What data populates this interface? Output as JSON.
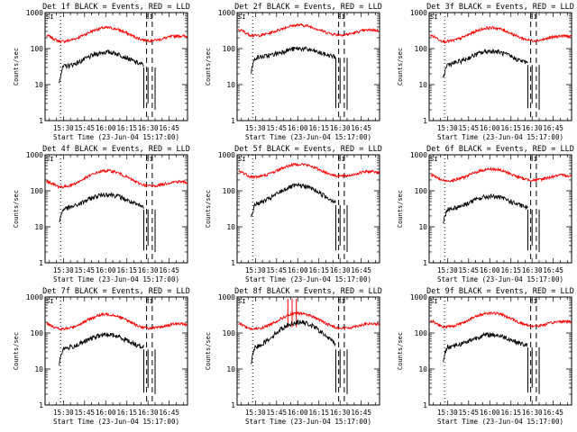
{
  "figure": {
    "tick_labels_y": [
      "1000",
      "100",
      "10",
      "1"
    ],
    "tick_labels_x": [
      "15:30",
      "15:45",
      "16:00",
      "16:15",
      "16:30",
      "16:45"
    ],
    "ylabel": "Counts/sec",
    "xlabel": "Start Time (23-Jun-04 15:17:00)",
    "marker_label": "SI",
    "colors": {
      "events": "#000000",
      "lld": "#ff0000"
    }
  },
  "chart_data": [
    {
      "type": "line",
      "title": "Det 1f BLACK = Events, RED = LLD",
      "yscale": "log",
      "ylim": [
        1,
        1000
      ],
      "x_start": "15:17",
      "x_end": "16:58",
      "xlabel": "Start Time (23-Jun-04 15:17:00)",
      "ylabel": "Counts/sec",
      "events_base": 30,
      "events_peak": 80,
      "lld_base": 150,
      "lld_peak": 380,
      "spike": false
    },
    {
      "type": "line",
      "title": "Det 2f BLACK = Events, RED = LLD",
      "yscale": "log",
      "ylim": [
        1,
        1000
      ],
      "x_start": "15:17",
      "x_end": "16:58",
      "xlabel": "Start Time (23-Jun-04 15:17:00)",
      "ylabel": "Counts/sec",
      "events_base": 55,
      "events_peak": 100,
      "lld_base": 220,
      "lld_peak": 450,
      "spike": false
    },
    {
      "type": "line",
      "title": "Det 3f BLACK = Events, RED = LLD",
      "yscale": "log",
      "ylim": [
        1,
        1000
      ],
      "x_start": "15:17",
      "x_end": "16:58",
      "xlabel": "Start Time (23-Jun-04 15:17:00)",
      "ylabel": "Counts/sec",
      "events_base": 35,
      "events_peak": 85,
      "lld_base": 150,
      "lld_peak": 380,
      "spike": false
    },
    {
      "type": "line",
      "title": "Det 4f BLACK = Events, RED = LLD",
      "yscale": "log",
      "ylim": [
        1,
        1000
      ],
      "x_start": "15:17",
      "x_end": "16:58",
      "xlabel": "Start Time (23-Jun-04 15:17:00)",
      "ylabel": "Counts/sec",
      "events_base": 30,
      "events_peak": 80,
      "lld_base": 120,
      "lld_peak": 360,
      "spike": false
    },
    {
      "type": "line",
      "title": "Det 5f BLACK = Events, RED = LLD",
      "yscale": "log",
      "ylim": [
        1,
        1000
      ],
      "x_start": "15:17",
      "x_end": "16:58",
      "xlabel": "Start Time (23-Jun-04 15:17:00)",
      "ylabel": "Counts/sec",
      "events_base": 40,
      "events_peak": 140,
      "lld_base": 230,
      "lld_peak": 550,
      "spike": false
    },
    {
      "type": "line",
      "title": "Det 6f BLACK = Events, RED = LLD",
      "yscale": "log",
      "ylim": [
        1,
        1000
      ],
      "x_start": "15:17",
      "x_end": "16:58",
      "xlabel": "Start Time (23-Jun-04 15:17:00)",
      "ylabel": "Counts/sec",
      "events_base": 30,
      "events_peak": 70,
      "lld_base": 180,
      "lld_peak": 400,
      "spike": false
    },
    {
      "type": "line",
      "title": "Det 7f BLACK = Events, RED = LLD",
      "yscale": "log",
      "ylim": [
        1,
        1000
      ],
      "x_start": "15:17",
      "x_end": "16:58",
      "xlabel": "Start Time (23-Jun-04 15:17:00)",
      "ylabel": "Counts/sec",
      "events_base": 35,
      "events_peak": 90,
      "lld_base": 120,
      "lld_peak": 330,
      "spike": false
    },
    {
      "type": "line",
      "title": "Det 8f BLACK = Events, RED = LLD",
      "yscale": "log",
      "ylim": [
        1,
        1000
      ],
      "x_start": "15:17",
      "x_end": "16:58",
      "xlabel": "Start Time (23-Jun-04 15:17:00)",
      "ylabel": "Counts/sec",
      "events_base": 35,
      "events_peak": 200,
      "lld_base": 120,
      "lld_peak": 350,
      "spike": true
    },
    {
      "type": "line",
      "title": "Det 9f BLACK = Events, RED = LLD",
      "yscale": "log",
      "ylim": [
        1,
        1000
      ],
      "x_start": "15:17",
      "x_end": "16:58",
      "xlabel": "Start Time (23-Jun-04 15:17:00)",
      "ylabel": "Counts/sec",
      "events_base": 40,
      "events_peak": 90,
      "lld_base": 140,
      "lld_peak": 360,
      "spike": false
    }
  ]
}
